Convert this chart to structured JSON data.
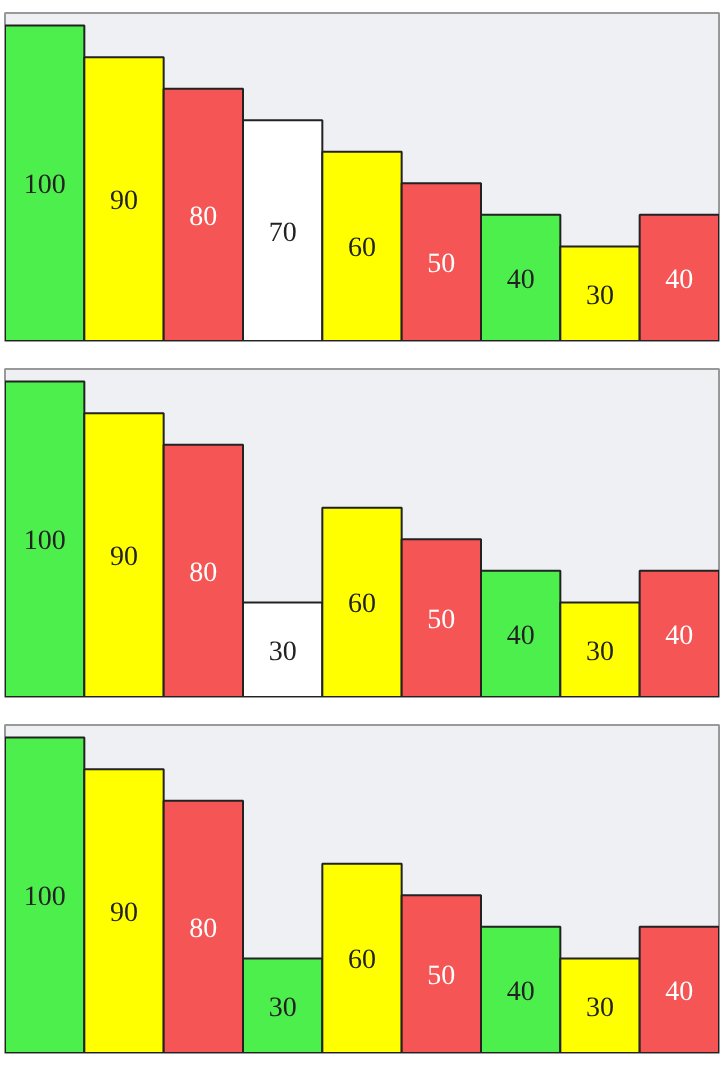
{
  "chart_data": [
    {
      "type": "bar",
      "categories": [
        null,
        null,
        null,
        null,
        null,
        null,
        null,
        null,
        null
      ],
      "values": [
        100,
        90,
        80,
        70,
        60,
        50,
        40,
        30,
        40
      ],
      "colors": [
        "#4cef4c",
        "#ffff00",
        "#f55555",
        "#ffffff",
        "#ffff00",
        "#f55555",
        "#4cef4c",
        "#ffff00",
        "#f55555"
      ],
      "data_labels": true,
      "grid": false
    },
    {
      "type": "bar",
      "categories": [
        null,
        null,
        null,
        null,
        null,
        null,
        null,
        null,
        null
      ],
      "values": [
        100,
        90,
        80,
        30,
        60,
        50,
        40,
        30,
        40
      ],
      "colors": [
        "#4cef4c",
        "#ffff00",
        "#f55555",
        "#ffffff",
        "#ffff00",
        "#f55555",
        "#4cef4c",
        "#ffff00",
        "#f55555"
      ],
      "data_labels": true,
      "grid": false
    },
    {
      "type": "bar",
      "categories": [
        null,
        null,
        null,
        null,
        null,
        null,
        null,
        null,
        null
      ],
      "values": [
        100,
        90,
        80,
        30,
        60,
        50,
        40,
        30,
        40
      ],
      "colors": [
        "#4cef4c",
        "#ffff00",
        "#f55555",
        "#4cef4c",
        "#ffff00",
        "#f55555",
        "#4cef4c",
        "#ffff00",
        "#f55555"
      ],
      "data_labels": true,
      "grid": false
    }
  ]
}
